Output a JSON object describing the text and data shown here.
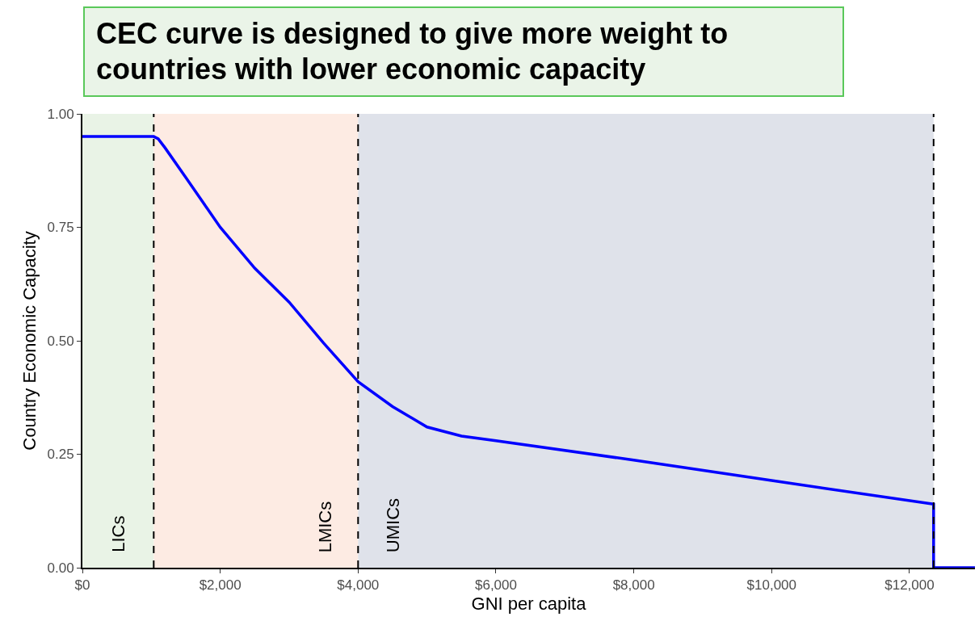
{
  "chart_data": {
    "type": "line",
    "title": "CEC curve is designed to give more weight to countries with lower economic capacity",
    "xlabel": "GNI per capita",
    "ylabel": "Country Economic Capacity",
    "x": [
      0,
      1035,
      1100,
      1200,
      1500,
      2000,
      2500,
      3000,
      3500,
      4000,
      4500,
      5000,
      5500,
      6000,
      8000,
      10000,
      12350,
      12350,
      12950
    ],
    "series": [
      {
        "color": "#0000ff",
        "values": [
          0.95,
          0.95,
          0.945,
          0.925,
          0.86,
          0.75,
          0.66,
          0.585,
          0.495,
          0.41,
          0.355,
          0.31,
          0.29,
          0.28,
          0.237,
          0.192,
          0.14,
          0,
          0
        ]
      }
    ],
    "xlim": [
      0,
      12950
    ],
    "ylim": [
      0,
      1
    ],
    "xticks": [
      {
        "value": 0,
        "label": "$0"
      },
      {
        "value": 2000,
        "label": "$2,000"
      },
      {
        "value": 4000,
        "label": "$4,000"
      },
      {
        "value": 6000,
        "label": "$6,000"
      },
      {
        "value": 8000,
        "label": "$8,000"
      },
      {
        "value": 10000,
        "label": "$10,000"
      },
      {
        "value": 12000,
        "label": "$12,000"
      }
    ],
    "yticks": [
      {
        "value": 0,
        "label": "0.00"
      },
      {
        "value": 0.25,
        "label": "0.25"
      },
      {
        "value": 0.5,
        "label": "0.50"
      },
      {
        "value": 0.75,
        "label": "0.75"
      },
      {
        "value": 1,
        "label": "1.00"
      }
    ],
    "bands": [
      {
        "axis": "x",
        "from": 0,
        "to": 1035,
        "color": "#e9f3e6",
        "label": "LICs"
      },
      {
        "axis": "x",
        "from": 1035,
        "to": 4000,
        "color": "#fdebe3",
        "label": "LMICs"
      },
      {
        "axis": "x",
        "from": 4000,
        "to": 12350,
        "color": "#dfe2ea",
        "label": "UMICs"
      }
    ],
    "ref_lines": [
      {
        "axis": "x",
        "value": 1035,
        "color": "#000000",
        "line_style": "dashed"
      },
      {
        "axis": "x",
        "value": 4000,
        "color": "#000000",
        "line_style": "dashed"
      },
      {
        "axis": "x",
        "value": 12350,
        "color": "#000000",
        "line_style": "dashed"
      }
    ],
    "grid": false,
    "marker": "none",
    "line_style": "solid"
  }
}
